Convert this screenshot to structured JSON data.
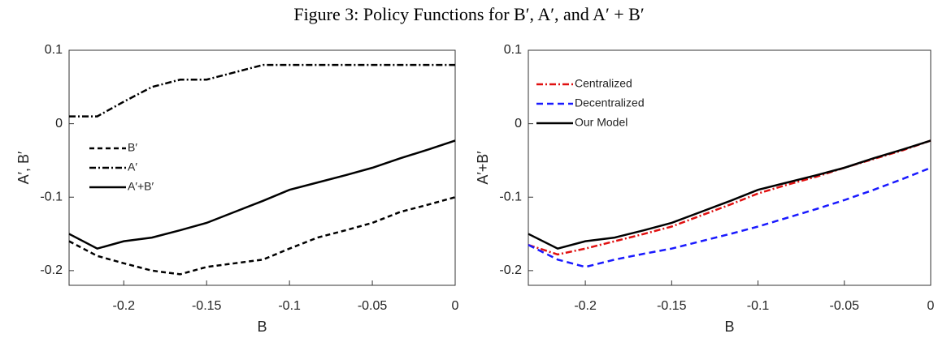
{
  "title": "Figure 3: Policy Functions for B′, A′, and A′ + B′",
  "chart_data": [
    {
      "type": "line",
      "xlabel": "B",
      "ylabel": "A′, B′",
      "x": [
        -0.233,
        -0.216,
        -0.2,
        -0.183,
        -0.166,
        -0.15,
        -0.133,
        -0.116,
        -0.1,
        -0.083,
        -0.066,
        -0.05,
        -0.033,
        -0.016,
        0
      ],
      "xlim": [
        -0.233,
        0
      ],
      "xticks": [
        -0.2,
        -0.15,
        -0.1,
        -0.05,
        0
      ],
      "ylim": [
        -0.22,
        0.1
      ],
      "yticks": [
        -0.2,
        -0.1,
        0,
        0.1
      ],
      "legend": "center-left",
      "series": [
        {
          "name": "B′",
          "color": "#000000",
          "dash": "6,4",
          "values": [
            -0.16,
            -0.18,
            -0.19,
            -0.2,
            -0.205,
            -0.195,
            -0.19,
            -0.185,
            -0.17,
            -0.155,
            -0.145,
            -0.135,
            -0.12,
            -0.11,
            -0.1
          ]
        },
        {
          "name": "A′",
          "color": "#000000",
          "dash": "8,3,2,3",
          "values": [
            0.01,
            0.01,
            0.03,
            0.05,
            0.06,
            0.06,
            0.07,
            0.08,
            0.08,
            0.08,
            0.08,
            0.08,
            0.08,
            0.08,
            0.08
          ]
        },
        {
          "name": "A′+B′",
          "color": "#000000",
          "dash": "none",
          "values": [
            -0.15,
            -0.17,
            -0.16,
            -0.155,
            -0.145,
            -0.135,
            -0.12,
            -0.105,
            -0.09,
            -0.08,
            -0.07,
            -0.06,
            -0.047,
            -0.035,
            -0.023
          ]
        }
      ]
    },
    {
      "type": "line",
      "xlabel": "B",
      "ylabel": "A′+B′",
      "x": [
        -0.233,
        -0.216,
        -0.2,
        -0.183,
        -0.166,
        -0.15,
        -0.133,
        -0.116,
        -0.1,
        -0.083,
        -0.066,
        -0.05,
        -0.033,
        -0.016,
        0
      ],
      "xlim": [
        -0.233,
        0
      ],
      "xticks": [
        -0.2,
        -0.15,
        -0.1,
        -0.05,
        0
      ],
      "ylim": [
        -0.22,
        0.1
      ],
      "yticks": [
        -0.2,
        -0.1,
        0,
        0.1
      ],
      "legend": "upper-left",
      "series": [
        {
          "name": "Centralized",
          "color": "#e01010",
          "dash": "8,3,2,3",
          "values": [
            -0.165,
            -0.178,
            -0.17,
            -0.16,
            -0.15,
            -0.14,
            -0.125,
            -0.11,
            -0.095,
            -0.083,
            -0.072,
            -0.06,
            -0.048,
            -0.036,
            -0.023
          ]
        },
        {
          "name": "Decentralized",
          "color": "#1a1aff",
          "dash": "8,5",
          "values": [
            -0.165,
            -0.185,
            -0.195,
            -0.185,
            -0.177,
            -0.17,
            -0.16,
            -0.15,
            -0.14,
            -0.128,
            -0.116,
            -0.104,
            -0.09,
            -0.075,
            -0.06
          ]
        },
        {
          "name": "Our Model",
          "color": "#000000",
          "dash": "none",
          "values": [
            -0.15,
            -0.17,
            -0.16,
            -0.155,
            -0.145,
            -0.135,
            -0.12,
            -0.105,
            -0.09,
            -0.08,
            -0.07,
            -0.06,
            -0.047,
            -0.035,
            -0.023
          ]
        }
      ]
    }
  ]
}
